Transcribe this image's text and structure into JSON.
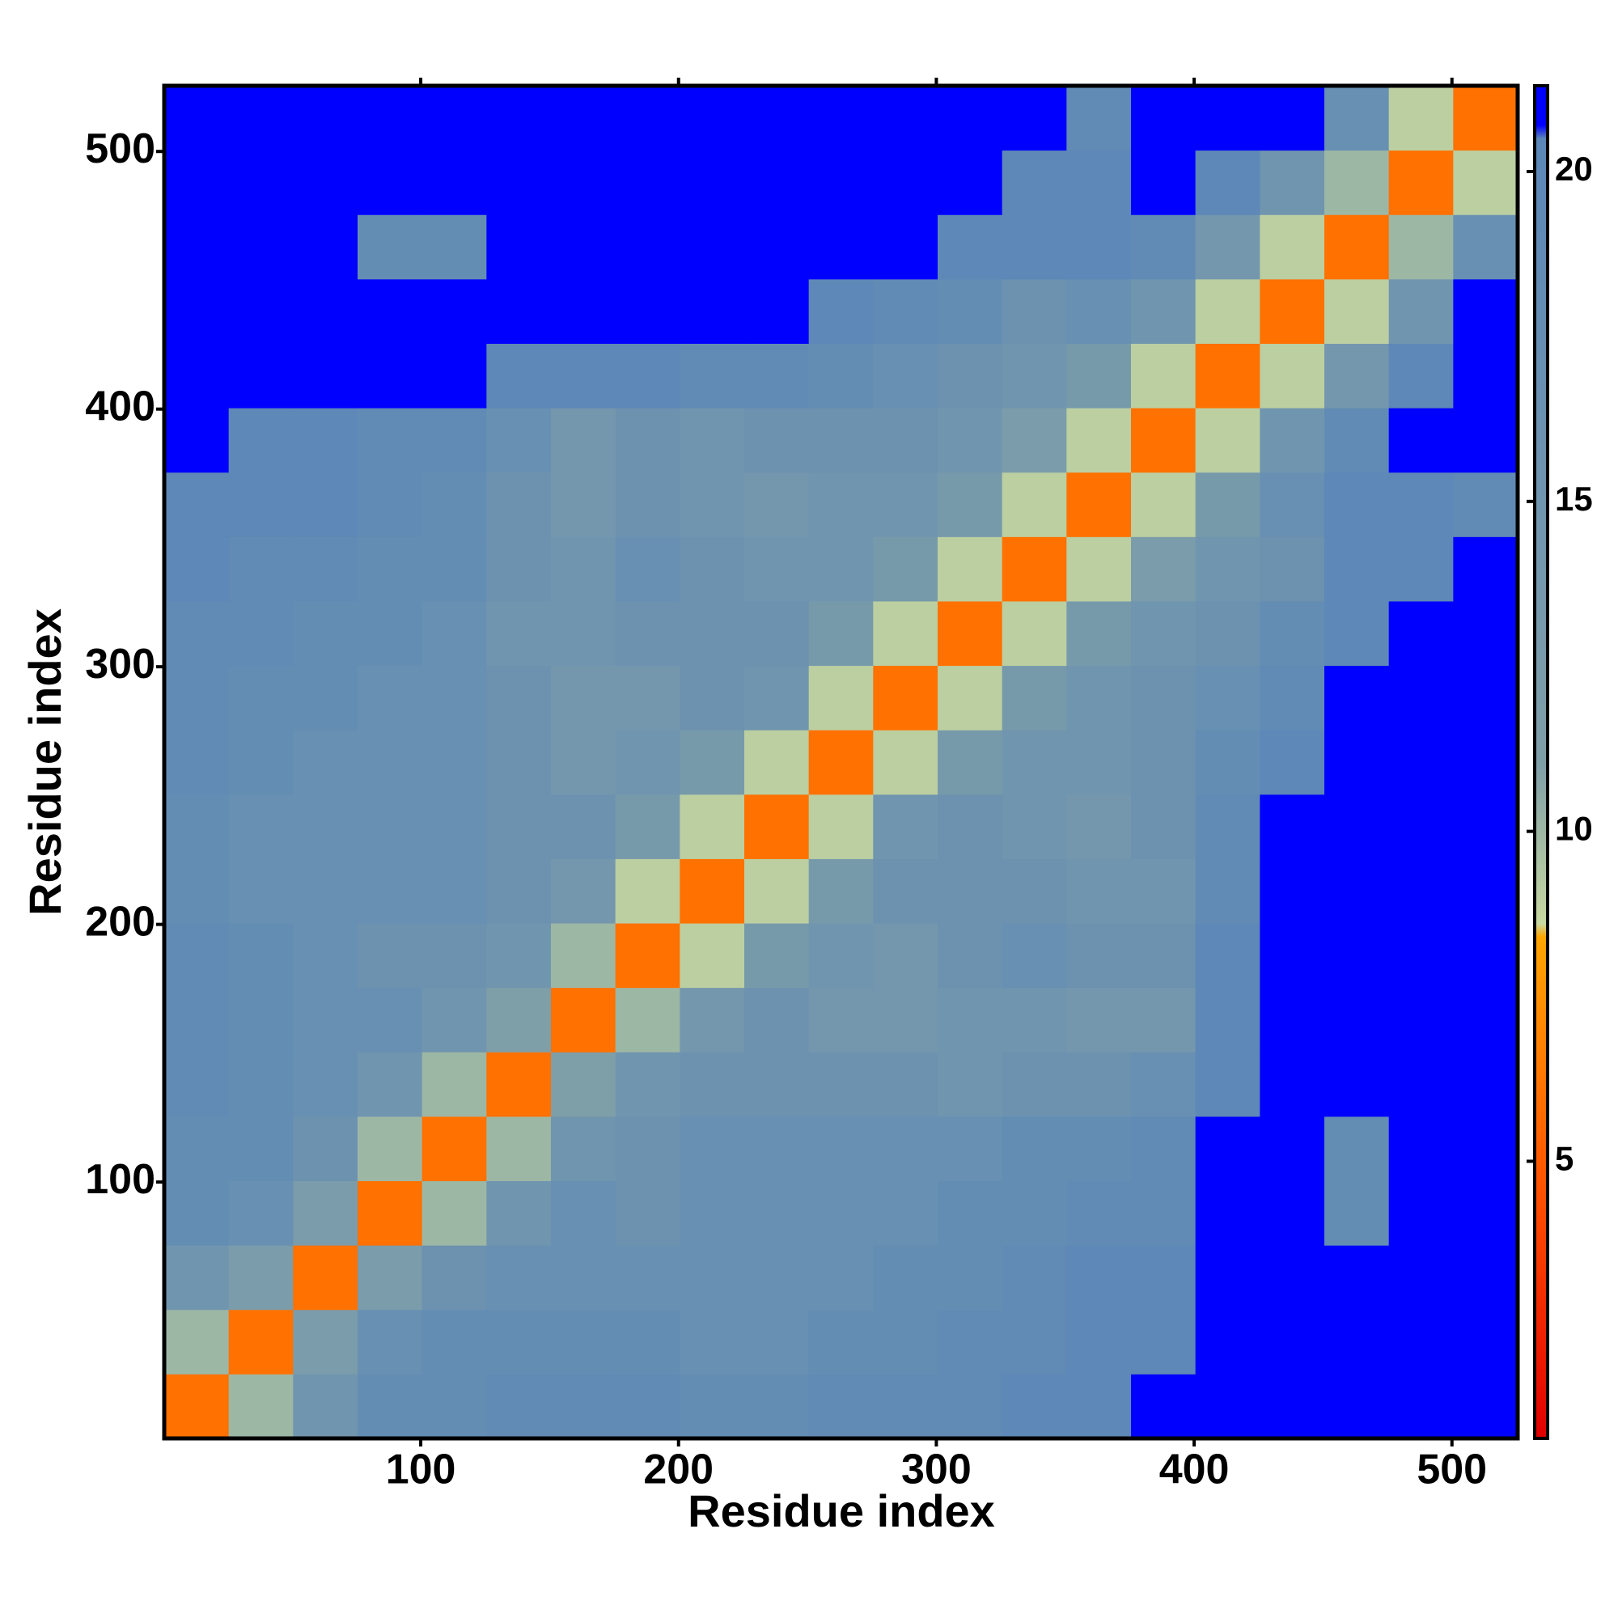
{
  "chart_data": {
    "type": "heatmap",
    "xlabel": "Residue index",
    "ylabel": "Residue index",
    "x_edges": [
      0.5,
      25.5,
      50.5,
      75.5,
      100.5,
      125.5,
      150.5,
      175.5,
      200.5,
      225.5,
      250.5,
      275.5,
      300.5,
      325.5,
      350.5,
      375.5,
      400.5,
      425.5,
      450.5,
      475.5,
      500.5,
      525.5
    ],
    "y_edges": [
      0.5,
      25.5,
      50.5,
      75.5,
      100.5,
      125.5,
      150.5,
      175.5,
      200.5,
      225.5,
      250.5,
      275.5,
      300.5,
      325.5,
      350.5,
      375.5,
      400.5,
      425.5,
      450.5,
      475.5,
      500.5,
      525.5
    ],
    "z": [
      [
        6,
        10,
        15,
        18,
        18,
        19,
        19,
        19,
        18,
        18,
        19,
        19,
        19,
        20,
        20,
        21,
        21,
        21,
        21,
        21,
        21
      ],
      [
        10,
        6,
        12,
        17,
        18,
        18,
        18,
        18,
        17,
        17,
        18,
        18,
        19,
        19,
        20,
        20,
        21,
        21,
        21,
        21,
        21
      ],
      [
        15,
        12,
        6,
        12,
        16,
        17,
        17,
        17,
        17,
        17,
        17,
        18,
        18,
        19,
        20,
        20,
        21,
        21,
        21,
        21,
        21
      ],
      [
        18,
        17,
        12,
        6,
        10,
        15,
        17,
        16,
        17,
        17,
        17,
        17,
        18,
        18,
        19,
        19,
        21,
        21,
        18,
        21,
        21
      ],
      [
        18,
        18,
        16,
        10,
        6,
        10,
        15,
        16,
        17,
        17,
        17,
        17,
        17,
        18,
        18,
        19,
        21,
        21,
        18,
        21,
        21
      ],
      [
        19,
        18,
        17,
        15,
        10,
        6,
        11,
        15,
        16,
        16,
        16,
        16,
        15,
        16,
        16,
        17,
        20,
        21,
        21,
        21,
        21
      ],
      [
        19,
        18,
        17,
        17,
        15,
        11,
        6,
        10,
        14,
        16,
        14,
        14,
        15,
        15,
        14,
        14,
        20,
        21,
        21,
        21,
        21
      ],
      [
        19,
        18,
        17,
        16,
        16,
        15,
        10,
        6,
        9,
        13,
        15,
        14,
        16,
        17,
        16,
        16,
        20,
        21,
        21,
        21,
        21
      ],
      [
        18,
        17,
        17,
        17,
        17,
        16,
        14,
        9,
        6,
        9,
        13,
        16,
        16,
        16,
        15,
        15,
        19,
        21,
        21,
        21,
        21
      ],
      [
        18,
        17,
        17,
        17,
        17,
        16,
        16,
        13,
        9,
        6,
        9,
        15,
        16,
        15,
        14,
        16,
        19,
        21,
        21,
        21,
        21
      ],
      [
        19,
        18,
        17,
        17,
        17,
        16,
        14,
        15,
        13,
        9,
        6,
        9,
        13,
        15,
        15,
        16,
        18,
        20,
        21,
        21,
        21
      ],
      [
        19,
        18,
        18,
        17,
        17,
        16,
        14,
        14,
        16,
        15,
        9,
        6,
        9,
        13,
        15,
        16,
        17,
        19,
        21,
        21,
        21
      ],
      [
        19,
        19,
        18,
        18,
        17,
        15,
        15,
        16,
        16,
        16,
        13,
        9,
        6,
        9,
        13,
        15,
        16,
        18,
        20,
        21,
        21
      ],
      [
        20,
        19,
        19,
        18,
        18,
        16,
        15,
        17,
        16,
        15,
        15,
        13,
        9,
        6,
        9,
        12,
        15,
        16,
        20,
        20,
        21
      ],
      [
        20,
        20,
        20,
        19,
        18,
        16,
        14,
        16,
        15,
        14,
        15,
        15,
        13,
        9,
        6,
        9,
        13,
        17,
        20,
        20,
        19
      ],
      [
        21,
        20,
        20,
        19,
        19,
        17,
        14,
        16,
        15,
        16,
        16,
        16,
        15,
        12,
        9,
        6,
        9,
        15,
        19,
        21,
        21
      ],
      [
        21,
        21,
        21,
        21,
        21,
        20,
        20,
        20,
        19,
        19,
        18,
        17,
        16,
        15,
        13,
        9,
        6,
        9,
        14,
        20,
        21
      ],
      [
        21,
        21,
        21,
        21,
        21,
        21,
        21,
        21,
        21,
        21,
        20,
        19,
        18,
        16,
        17,
        15,
        9,
        6,
        9,
        15,
        21
      ],
      [
        21,
        21,
        21,
        18,
        18,
        21,
        21,
        21,
        21,
        21,
        21,
        21,
        20,
        20,
        20,
        19,
        14,
        9,
        6,
        10,
        17
      ],
      [
        21,
        21,
        21,
        21,
        21,
        21,
        21,
        21,
        21,
        21,
        21,
        21,
        21,
        20,
        20,
        21,
        20,
        15,
        10,
        6,
        9
      ],
      [
        21,
        21,
        21,
        21,
        21,
        21,
        21,
        21,
        21,
        21,
        21,
        21,
        21,
        21,
        19,
        21,
        21,
        21,
        17,
        9,
        6
      ]
    ],
    "xlim": [
      0.5,
      525.5
    ],
    "ylim": [
      0.5,
      525.5
    ],
    "xticks": [
      100,
      200,
      300,
      400,
      500
    ],
    "yticks": [
      100,
      200,
      300,
      400,
      500
    ],
    "colorbar_lim": [
      0.8,
      21.3
    ],
    "colorbar_ticks": [
      5,
      10,
      15,
      20
    ],
    "colorscale": [
      [
        0.8,
        "#e00000"
      ],
      [
        4.5,
        "#ff5000"
      ],
      [
        8.4,
        "#ffa500"
      ],
      [
        8.6,
        "#c8d8a0"
      ],
      [
        11,
        "#7f9fa8"
      ],
      [
        20.5,
        "#5b87b8"
      ],
      [
        20.7,
        "#0000ff"
      ],
      [
        21.3,
        "#0000ff"
      ]
    ]
  }
}
